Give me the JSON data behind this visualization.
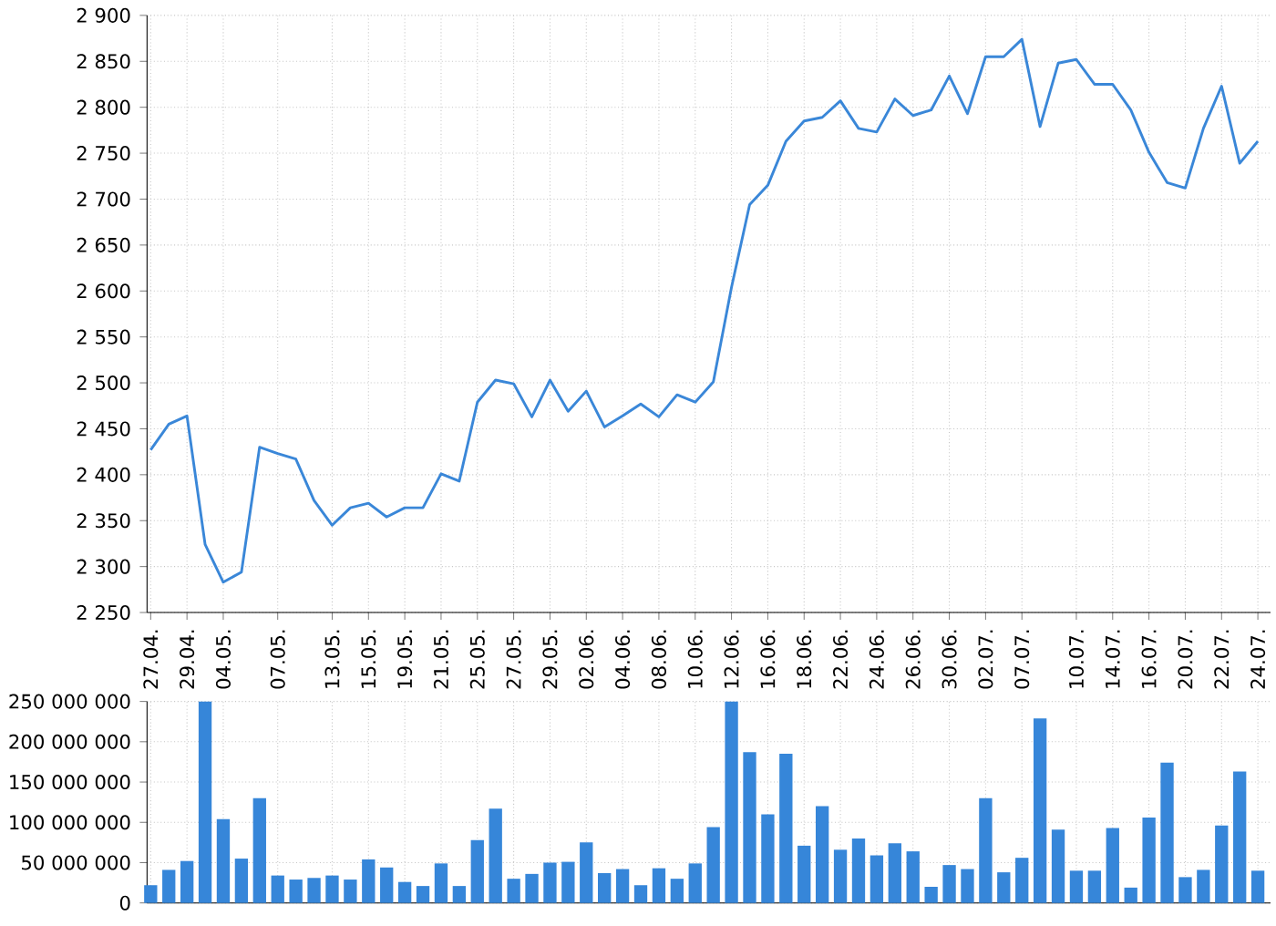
{
  "chart_data": [
    {
      "type": "line",
      "categories": [
        "27.04.",
        null,
        "29.04.",
        null,
        "04.05.",
        null,
        null,
        "07.05.",
        null,
        null,
        "13.05.",
        null,
        "15.05.",
        null,
        "19.05.",
        null,
        "21.05.",
        null,
        "25.05.",
        null,
        "27.05.",
        null,
        "29.05.",
        null,
        "02.06.",
        null,
        "04.06.",
        null,
        "08.06.",
        null,
        "10.06.",
        null,
        "12.06.",
        null,
        "16.06.",
        null,
        "18.06.",
        null,
        "22.06.",
        null,
        "24.06.",
        null,
        "26.06.",
        null,
        "30.06.",
        null,
        "02.07.",
        null,
        "07.07.",
        null,
        null,
        "10.07.",
        null,
        "14.07.",
        null,
        "16.07.",
        null,
        "20.07.",
        null,
        "22.07.",
        null,
        "24.07."
      ],
      "values": [
        2427,
        2455,
        2464,
        2324,
        2283,
        2294,
        2430,
        2423,
        2417,
        2372,
        2345,
        2364,
        2369,
        2354,
        2364,
        2364,
        2401,
        2393,
        2479,
        2503,
        2499,
        2463,
        2503,
        2469,
        2491,
        2452,
        2464,
        2477,
        2463,
        2487,
        2479,
        2501,
        2604,
        2694,
        2715,
        2763,
        2785,
        2789,
        2807,
        2777,
        2773,
        2809,
        2791,
        2797,
        2834,
        2793,
        2855,
        2855,
        2874,
        2779,
        2848,
        2852,
        2825,
        2825,
        2797,
        2751,
        2718,
        2712,
        2777,
        2823,
        2739,
        2763
      ],
      "color": "#3a87d8",
      "ylim": [
        2250,
        2900
      ],
      "yticks": [
        {
          "value": 2250,
          "label": "2 250"
        },
        {
          "value": 2300,
          "label": "2 300"
        },
        {
          "value": 2350,
          "label": "2 350"
        },
        {
          "value": 2400,
          "label": "2 400"
        },
        {
          "value": 2450,
          "label": "2 450"
        },
        {
          "value": 2500,
          "label": "2 500"
        },
        {
          "value": 2550,
          "label": "2 550"
        },
        {
          "value": 2600,
          "label": "2 600"
        },
        {
          "value": 2650,
          "label": "2 650"
        },
        {
          "value": 2700,
          "label": "2 700"
        },
        {
          "value": 2750,
          "label": "2 750"
        },
        {
          "value": 2800,
          "label": "2 800"
        },
        {
          "value": 2850,
          "label": "2 850"
        },
        {
          "value": 2900,
          "label": "2 900"
        }
      ],
      "grid": true
    },
    {
      "type": "bar",
      "categories": [
        "27.04.",
        null,
        "29.04.",
        null,
        "04.05.",
        null,
        null,
        "07.05.",
        null,
        null,
        "13.05.",
        null,
        "15.05.",
        null,
        "19.05.",
        null,
        "21.05.",
        null,
        "25.05.",
        null,
        "27.05.",
        null,
        "29.05.",
        null,
        "02.06.",
        null,
        "04.06.",
        null,
        "08.06.",
        null,
        "10.06.",
        null,
        "12.06.",
        null,
        "16.06.",
        null,
        "18.06.",
        null,
        "22.06.",
        null,
        "24.06.",
        null,
        "26.06.",
        null,
        "30.06.",
        null,
        "02.07.",
        null,
        "07.07.",
        null,
        null,
        "10.07.",
        null,
        "14.07.",
        null,
        "16.07.",
        null,
        "20.07.",
        null,
        "22.07.",
        null,
        "24.07."
      ],
      "values": [
        22000000,
        41000000,
        52000000,
        250000000,
        104000000,
        55000000,
        130000000,
        34000000,
        29000000,
        31000000,
        34000000,
        29000000,
        54000000,
        44000000,
        26000000,
        21000000,
        49000000,
        21000000,
        78000000,
        117000000,
        30000000,
        36000000,
        50000000,
        51000000,
        75000000,
        37000000,
        42000000,
        22000000,
        43000000,
        30000000,
        49000000,
        94000000,
        250000000,
        187000000,
        110000000,
        185000000,
        71000000,
        120000000,
        66000000,
        80000000,
        59000000,
        74000000,
        64000000,
        20000000,
        47000000,
        42000000,
        130000000,
        38000000,
        56000000,
        229000000,
        91000000,
        40000000,
        40000000,
        93000000,
        19000000,
        106000000,
        174000000,
        32000000,
        41000000,
        96000000,
        163000000,
        40000000
      ],
      "color": "#3686d9",
      "ylim": [
        0,
        250000000
      ],
      "yticks": [
        {
          "value": 0,
          "label": "0"
        },
        {
          "value": 50000000,
          "label": "50 000 000"
        },
        {
          "value": 100000000,
          "label": "100 000 000"
        },
        {
          "value": 150000000,
          "label": "150 000 000"
        },
        {
          "value": 200000000,
          "label": "200 000 000"
        },
        {
          "value": 250000000,
          "label": "250 000 000"
        }
      ],
      "grid": true,
      "tick_labels": "y"
    }
  ]
}
